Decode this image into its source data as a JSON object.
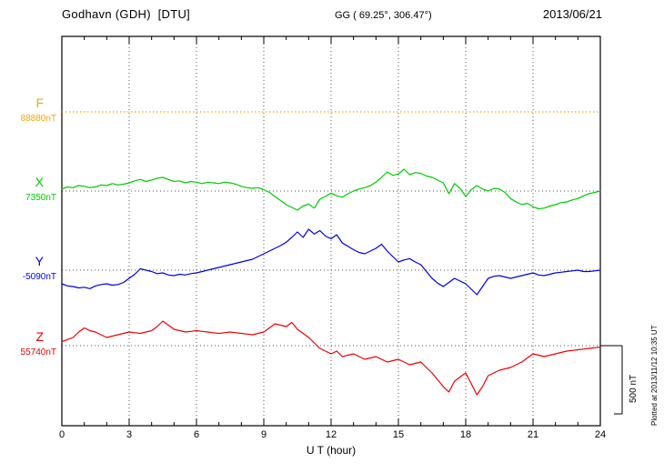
{
  "header": {
    "station": "Godhavn (GDH)  [DTU]",
    "coords": "GG ( 69.25°, 306.47°)",
    "date": "2013/06/21"
  },
  "xlabel": "U T (hour)",
  "side_note": "Plotted at 2013/11/12 10:35 UT",
  "scale_bar": {
    "label": "500 nT",
    "nT": 500
  },
  "components": [
    {
      "name": "F",
      "value_label": "88880nT",
      "baseline_nT": 88880,
      "color": "#f5a800"
    },
    {
      "name": "X",
      "value_label": "7350nT",
      "baseline_nT": 7350,
      "color": "#00cc00"
    },
    {
      "name": "Y",
      "value_label": "-5090nT",
      "baseline_nT": -5090,
      "color": "#0000ee"
    },
    {
      "name": "Z",
      "value_label": "55740nT",
      "baseline_nT": 55740,
      "color": "#ee0000"
    }
  ],
  "chart_data": {
    "type": "line",
    "title": "Godhavn (GDH) [DTU] magnetogram 2013/06/21",
    "xlabel": "U T (hour)",
    "x_ticks": [
      0,
      3,
      6,
      9,
      12,
      15,
      18,
      21,
      24
    ],
    "x_range": [
      0,
      24
    ],
    "grid": true,
    "scale": {
      "label": "500 nT",
      "nT": 500
    },
    "note": "series points are [UT hour, offset in nT from baseline_nT]",
    "series": [
      {
        "name": "F",
        "color": "#f5a800",
        "baseline_nT": 88880,
        "line_style": "dotted",
        "points": [
          [
            0,
            0
          ],
          [
            24,
            0
          ]
        ]
      },
      {
        "name": "X",
        "color": "#00cc00",
        "baseline_nT": 7350,
        "line_style": "solid",
        "points": [
          [
            0,
            15
          ],
          [
            0.25,
            30
          ],
          [
            0.5,
            25
          ],
          [
            0.75,
            40
          ],
          [
            1,
            35
          ],
          [
            1.25,
            25
          ],
          [
            1.5,
            30
          ],
          [
            1.75,
            45
          ],
          [
            2,
            40
          ],
          [
            2.25,
            55
          ],
          [
            2.5,
            45
          ],
          [
            2.75,
            50
          ],
          [
            3,
            60
          ],
          [
            3.25,
            75
          ],
          [
            3.5,
            85
          ],
          [
            3.75,
            70
          ],
          [
            4,
            80
          ],
          [
            4.25,
            95
          ],
          [
            4.5,
            100
          ],
          [
            4.75,
            85
          ],
          [
            5,
            70
          ],
          [
            5.25,
            75
          ],
          [
            5.5,
            60
          ],
          [
            5.75,
            70
          ],
          [
            6,
            65
          ],
          [
            6.25,
            55
          ],
          [
            6.5,
            65
          ],
          [
            6.75,
            60
          ],
          [
            7,
            55
          ],
          [
            7.25,
            65
          ],
          [
            7.5,
            60
          ],
          [
            7.75,
            50
          ],
          [
            8,
            35
          ],
          [
            8.25,
            25
          ],
          [
            8.5,
            20
          ],
          [
            8.75,
            25
          ],
          [
            9,
            10
          ],
          [
            9.25,
            -10
          ],
          [
            9.5,
            -40
          ],
          [
            9.75,
            -70
          ],
          [
            10,
            -100
          ],
          [
            10.25,
            -120
          ],
          [
            10.5,
            -140
          ],
          [
            10.75,
            -110
          ],
          [
            11,
            -95
          ],
          [
            11.25,
            -125
          ],
          [
            11.5,
            -60
          ],
          [
            11.75,
            -40
          ],
          [
            12,
            -15
          ],
          [
            12.25,
            -35
          ],
          [
            12.5,
            -45
          ],
          [
            12.75,
            -20
          ],
          [
            13,
            0
          ],
          [
            13.25,
            15
          ],
          [
            13.5,
            25
          ],
          [
            13.75,
            40
          ],
          [
            14,
            65
          ],
          [
            14.25,
            100
          ],
          [
            14.5,
            140
          ],
          [
            14.75,
            115
          ],
          [
            15,
            125
          ],
          [
            15.25,
            160
          ],
          [
            15.5,
            120
          ],
          [
            15.75,
            135
          ],
          [
            16,
            130
          ],
          [
            16.25,
            110
          ],
          [
            16.5,
            100
          ],
          [
            16.75,
            80
          ],
          [
            17,
            60
          ],
          [
            17.25,
            -20
          ],
          [
            17.5,
            55
          ],
          [
            17.75,
            20
          ],
          [
            18,
            -40
          ],
          [
            18.25,
            10
          ],
          [
            18.5,
            40
          ],
          [
            18.75,
            15
          ],
          [
            19,
            0
          ],
          [
            19.25,
            20
          ],
          [
            19.5,
            15
          ],
          [
            19.75,
            -10
          ],
          [
            20,
            -55
          ],
          [
            20.25,
            -80
          ],
          [
            20.5,
            -100
          ],
          [
            20.75,
            -90
          ],
          [
            21,
            -115
          ],
          [
            21.25,
            -130
          ],
          [
            21.5,
            -125
          ],
          [
            21.75,
            -110
          ],
          [
            22,
            -100
          ],
          [
            22.25,
            -85
          ],
          [
            22.5,
            -80
          ],
          [
            22.75,
            -65
          ],
          [
            23,
            -55
          ],
          [
            23.25,
            -35
          ],
          [
            23.5,
            -20
          ],
          [
            23.75,
            -10
          ],
          [
            24,
            0
          ]
        ]
      },
      {
        "name": "Y",
        "color": "#0000ee",
        "baseline_nT": -5090,
        "line_style": "solid",
        "points": [
          [
            0,
            -100
          ],
          [
            0.25,
            -115
          ],
          [
            0.5,
            -120
          ],
          [
            0.75,
            -130
          ],
          [
            1,
            -125
          ],
          [
            1.25,
            -135
          ],
          [
            1.5,
            -115
          ],
          [
            1.75,
            -105
          ],
          [
            2,
            -100
          ],
          [
            2.25,
            -110
          ],
          [
            2.5,
            -105
          ],
          [
            2.75,
            -90
          ],
          [
            3,
            -60
          ],
          [
            3.25,
            -30
          ],
          [
            3.5,
            10
          ],
          [
            3.75,
            0
          ],
          [
            4,
            -10
          ],
          [
            4.25,
            -25
          ],
          [
            4.5,
            -20
          ],
          [
            4.75,
            -35
          ],
          [
            5,
            -40
          ],
          [
            5.25,
            -30
          ],
          [
            5.5,
            -35
          ],
          [
            5.75,
            -25
          ],
          [
            6,
            -20
          ],
          [
            6.25,
            -10
          ],
          [
            6.5,
            0
          ],
          [
            6.75,
            10
          ],
          [
            7,
            20
          ],
          [
            7.25,
            30
          ],
          [
            7.5,
            40
          ],
          [
            7.75,
            50
          ],
          [
            8,
            60
          ],
          [
            8.25,
            70
          ],
          [
            8.5,
            80
          ],
          [
            8.75,
            100
          ],
          [
            9,
            120
          ],
          [
            9.25,
            140
          ],
          [
            9.5,
            160
          ],
          [
            9.75,
            180
          ],
          [
            10,
            205
          ],
          [
            10.25,
            240
          ],
          [
            10.5,
            280
          ],
          [
            10.75,
            240
          ],
          [
            11,
            300
          ],
          [
            11.25,
            265
          ],
          [
            11.5,
            290
          ],
          [
            11.75,
            250
          ],
          [
            12,
            230
          ],
          [
            12.25,
            260
          ],
          [
            12.5,
            200
          ],
          [
            12.75,
            175
          ],
          [
            13,
            150
          ],
          [
            13.25,
            130
          ],
          [
            13.5,
            120
          ],
          [
            13.75,
            140
          ],
          [
            14,
            160
          ],
          [
            14.25,
            190
          ],
          [
            14.5,
            140
          ],
          [
            14.75,
            100
          ],
          [
            15,
            60
          ],
          [
            15.25,
            75
          ],
          [
            15.5,
            85
          ],
          [
            15.75,
            60
          ],
          [
            16,
            40
          ],
          [
            16.25,
            -10
          ],
          [
            16.5,
            -60
          ],
          [
            16.75,
            -95
          ],
          [
            17,
            -120
          ],
          [
            17.25,
            -90
          ],
          [
            17.5,
            -60
          ],
          [
            17.75,
            -80
          ],
          [
            18,
            -100
          ],
          [
            18.25,
            -140
          ],
          [
            18.5,
            -180
          ],
          [
            18.75,
            -120
          ],
          [
            19,
            -60
          ],
          [
            19.25,
            -45
          ],
          [
            19.5,
            -40
          ],
          [
            19.75,
            -50
          ],
          [
            20,
            -60
          ],
          [
            20.25,
            -50
          ],
          [
            20.5,
            -40
          ],
          [
            20.75,
            -30
          ],
          [
            21,
            -20
          ],
          [
            21.25,
            -35
          ],
          [
            21.5,
            -40
          ],
          [
            21.75,
            -30
          ],
          [
            22,
            -20
          ],
          [
            22.25,
            -15
          ],
          [
            22.5,
            -10
          ],
          [
            22.75,
            -5
          ],
          [
            23,
            0
          ],
          [
            23.25,
            -10
          ],
          [
            23.5,
            -10
          ],
          [
            23.75,
            -5
          ],
          [
            24,
            0
          ]
        ]
      },
      {
        "name": "Z",
        "color": "#ee0000",
        "baseline_nT": 55740,
        "line_style": "solid",
        "points": [
          [
            0,
            30
          ],
          [
            0.25,
            45
          ],
          [
            0.5,
            60
          ],
          [
            0.75,
            100
          ],
          [
            1,
            130
          ],
          [
            1.25,
            110
          ],
          [
            1.5,
            100
          ],
          [
            1.75,
            80
          ],
          [
            2,
            60
          ],
          [
            2.25,
            70
          ],
          [
            2.5,
            80
          ],
          [
            2.75,
            90
          ],
          [
            3,
            100
          ],
          [
            3.25,
            95
          ],
          [
            3.5,
            90
          ],
          [
            3.75,
            100
          ],
          [
            4,
            110
          ],
          [
            4.25,
            140
          ],
          [
            4.5,
            180
          ],
          [
            4.75,
            150
          ],
          [
            5,
            120
          ],
          [
            5.25,
            110
          ],
          [
            5.5,
            100
          ],
          [
            5.75,
            105
          ],
          [
            6,
            110
          ],
          [
            6.25,
            105
          ],
          [
            6.5,
            100
          ],
          [
            6.75,
            95
          ],
          [
            7,
            90
          ],
          [
            7.25,
            95
          ],
          [
            7.5,
            100
          ],
          [
            7.75,
            95
          ],
          [
            8,
            90
          ],
          [
            8.25,
            85
          ],
          [
            8.5,
            80
          ],
          [
            8.75,
            90
          ],
          [
            9,
            100
          ],
          [
            9.25,
            130
          ],
          [
            9.5,
            160
          ],
          [
            9.75,
            150
          ],
          [
            10,
            140
          ],
          [
            10.25,
            170
          ],
          [
            10.5,
            120
          ],
          [
            10.75,
            90
          ],
          [
            11,
            60
          ],
          [
            11.25,
            20
          ],
          [
            11.5,
            -20
          ],
          [
            11.75,
            -40
          ],
          [
            12,
            -60
          ],
          [
            12.25,
            -40
          ],
          [
            12.5,
            -80
          ],
          [
            12.75,
            -70
          ],
          [
            13,
            -60
          ],
          [
            13.25,
            -80
          ],
          [
            13.5,
            -100
          ],
          [
            13.75,
            -90
          ],
          [
            14,
            -80
          ],
          [
            14.25,
            -100
          ],
          [
            14.5,
            -120
          ],
          [
            14.75,
            -110
          ],
          [
            15,
            -100
          ],
          [
            15.25,
            -120
          ],
          [
            15.5,
            -140
          ],
          [
            15.75,
            -130
          ],
          [
            16,
            -120
          ],
          [
            16.25,
            -160
          ],
          [
            16.5,
            -200
          ],
          [
            16.75,
            -250
          ],
          [
            17,
            -300
          ],
          [
            17.25,
            -340
          ],
          [
            17.5,
            -260
          ],
          [
            17.75,
            -230
          ],
          [
            18,
            -200
          ],
          [
            18.25,
            -280
          ],
          [
            18.5,
            -360
          ],
          [
            18.75,
            -300
          ],
          [
            19,
            -220
          ],
          [
            19.25,
            -200
          ],
          [
            19.5,
            -180
          ],
          [
            19.75,
            -170
          ],
          [
            20,
            -160
          ],
          [
            20.25,
            -140
          ],
          [
            20.5,
            -120
          ],
          [
            20.75,
            -90
          ],
          [
            21,
            -60
          ],
          [
            21.25,
            -70
          ],
          [
            21.5,
            -80
          ],
          [
            21.75,
            -70
          ],
          [
            22,
            -60
          ],
          [
            22.25,
            -50
          ],
          [
            22.5,
            -40
          ],
          [
            22.75,
            -35
          ],
          [
            23,
            -30
          ],
          [
            23.25,
            -25
          ],
          [
            23.5,
            -20
          ],
          [
            23.75,
            -15
          ],
          [
            24,
            -10
          ]
        ]
      }
    ]
  }
}
